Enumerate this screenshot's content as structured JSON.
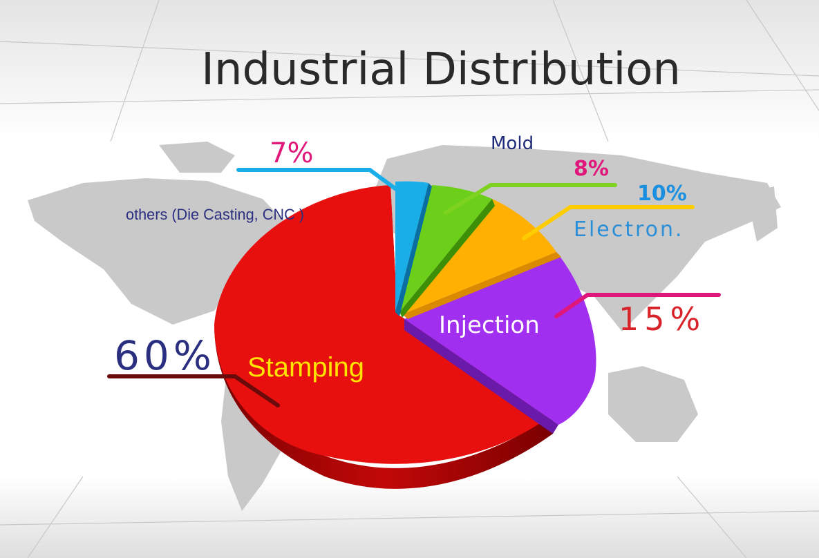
{
  "chart_data": {
    "type": "pie",
    "title": "Industrial Distribution",
    "slices": [
      {
        "label": "Stamping",
        "value": 60,
        "value_label": "60%",
        "color": "#e0100e"
      },
      {
        "label": "Injection",
        "value": 15,
        "value_label": "15%",
        "color": "#a12ff0"
      },
      {
        "label": "Electron.",
        "value": 10,
        "value_label": "10%",
        "color": "#ffa000"
      },
      {
        "label": "Mold",
        "value": 8,
        "value_label": "8%",
        "color": "#6ccf1a"
      },
      {
        "label": "others (Die Casting, CNC )",
        "value": 7,
        "value_label": "7%",
        "color": "#1aaee8"
      }
    ],
    "annotations": {
      "stamping_pct": "60%",
      "injection_pct": "15%",
      "electron_pct": "10%",
      "mold_pct": "8%",
      "others_pct": "7%"
    },
    "legend": "none",
    "style": "3d-exploded-pie"
  },
  "colors": {
    "title_text": "#2a2a2a",
    "stamping_pct": "#2b2f80",
    "stamping_label": "#ffe400",
    "injection_label": "#ffffff",
    "injection_pct": "#d9232a",
    "electron_label": "#2a8fd8",
    "electron_pct": "#1a8fe0",
    "mold_label": "#1f2a7a",
    "mold_pct": "#e0177a",
    "others_label": "#2b2f80",
    "others_pct": "#e0177a"
  }
}
